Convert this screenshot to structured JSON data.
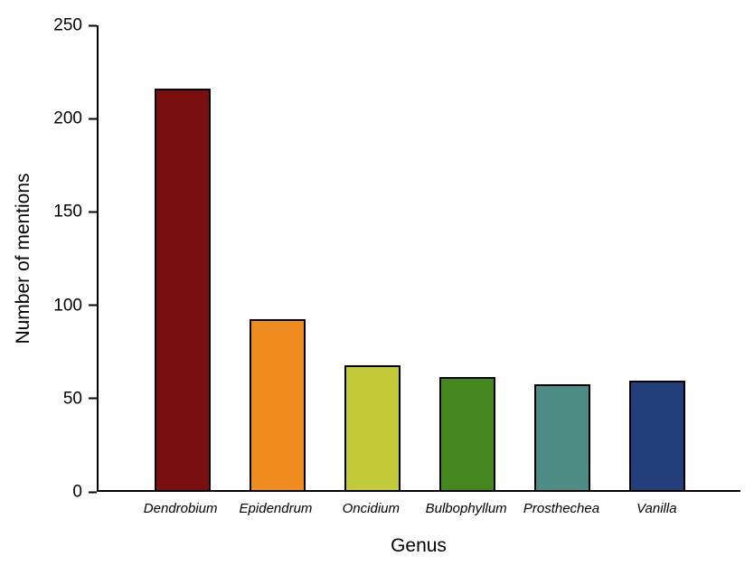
{
  "chart_data": {
    "type": "bar",
    "title": "",
    "xlabel": "Genus",
    "ylabel": "Number of mentions",
    "categories": [
      "Dendrobium",
      "Epidendrum",
      "Oncidium",
      "Bulbophyllum",
      "Prosthechea",
      "Vanilla"
    ],
    "values": [
      216,
      92,
      67,
      61,
      57,
      59
    ],
    "colors": [
      "#7a0f10",
      "#ef8c1f",
      "#c3ca3a",
      "#45871f",
      "#4d8c85",
      "#223f7c"
    ],
    "bar_border_color": "#000000",
    "ylim": [
      0,
      250
    ],
    "yticks": [
      0,
      50,
      100,
      150,
      200,
      250
    ],
    "grid": false,
    "legend": "none",
    "category_label_style": "italic"
  }
}
